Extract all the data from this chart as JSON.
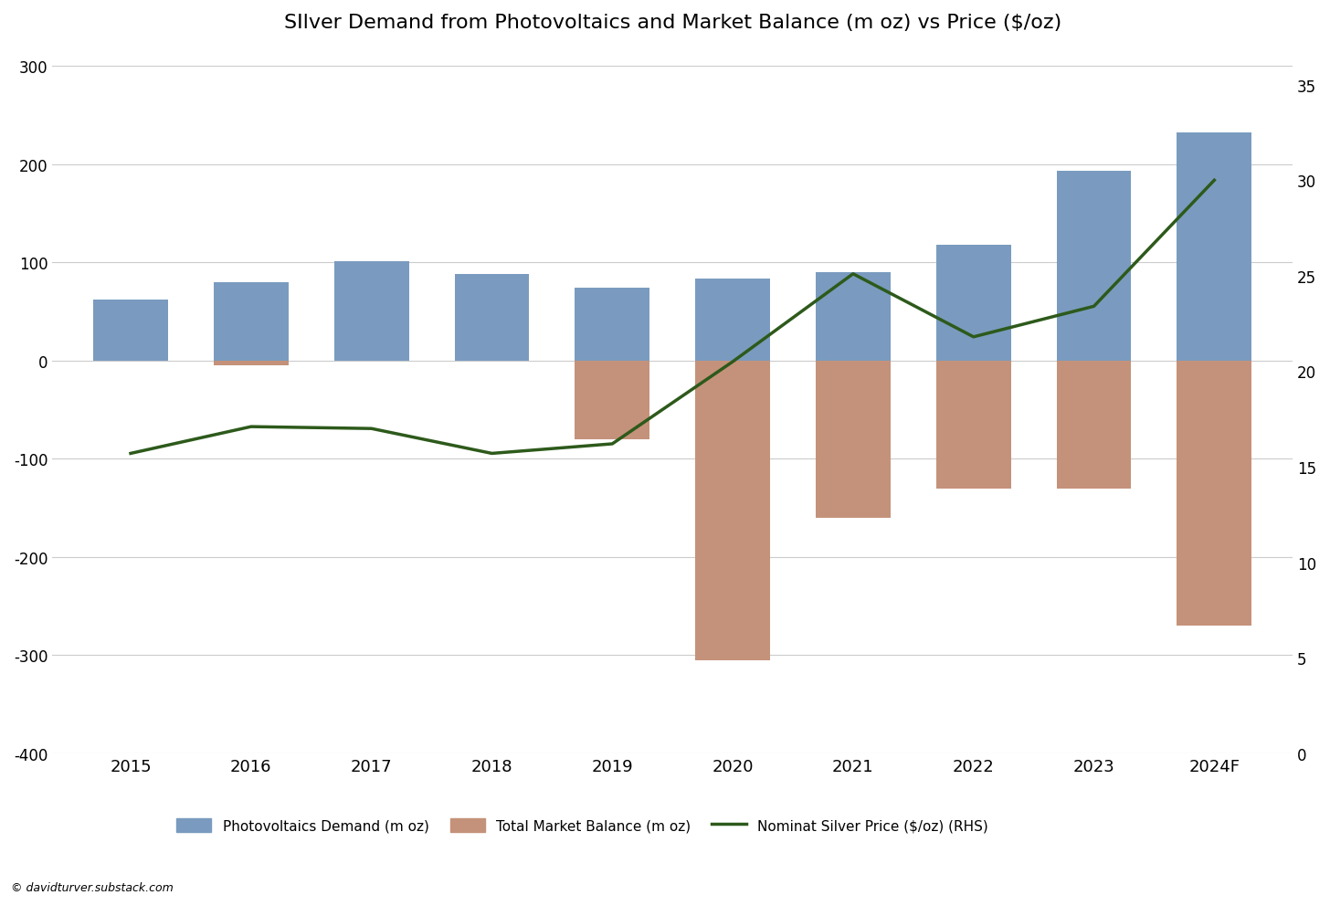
{
  "title": "SIlver Demand from Photovoltaics and Market Balance (m oz) vs Price ($/oz)",
  "years": [
    "2015",
    "2016",
    "2017",
    "2018",
    "2019",
    "2020",
    "2021",
    "2022",
    "2023",
    "2024F"
  ],
  "pv_demand": [
    62,
    80,
    101,
    88,
    74,
    84,
    90,
    118,
    193,
    232
  ],
  "market_balance": [
    2,
    -5,
    35,
    22,
    -80,
    -305,
    -160,
    -130,
    -130,
    -270
  ],
  "silver_price": [
    15.7,
    17.1,
    17.0,
    15.7,
    16.2,
    20.5,
    25.1,
    21.8,
    23.4,
    30.0
  ],
  "bar_width": 0.62,
  "pv_color": "#7a9bbf",
  "balance_color": "#c4927a",
  "price_color": "#2d5a1b",
  "ylim_left": [
    -400,
    320
  ],
  "ylim_right": [
    0,
    37
  ],
  "yticks_left": [
    -400,
    -300,
    -200,
    -100,
    0,
    100,
    200,
    300
  ],
  "yticks_right": [
    0,
    5,
    10,
    15,
    20,
    25,
    30,
    35
  ],
  "background_color": "#ffffff",
  "grid_color": "#cccccc",
  "title_fontsize": 16,
  "legend_label_pv": "Photovoltaics Demand (m oz)",
  "legend_label_balance": "Total Market Balance (m oz)",
  "legend_label_price": "Nominat Silver Price ($/oz) (RHS)",
  "watermark": "© davidturver.substack.com"
}
